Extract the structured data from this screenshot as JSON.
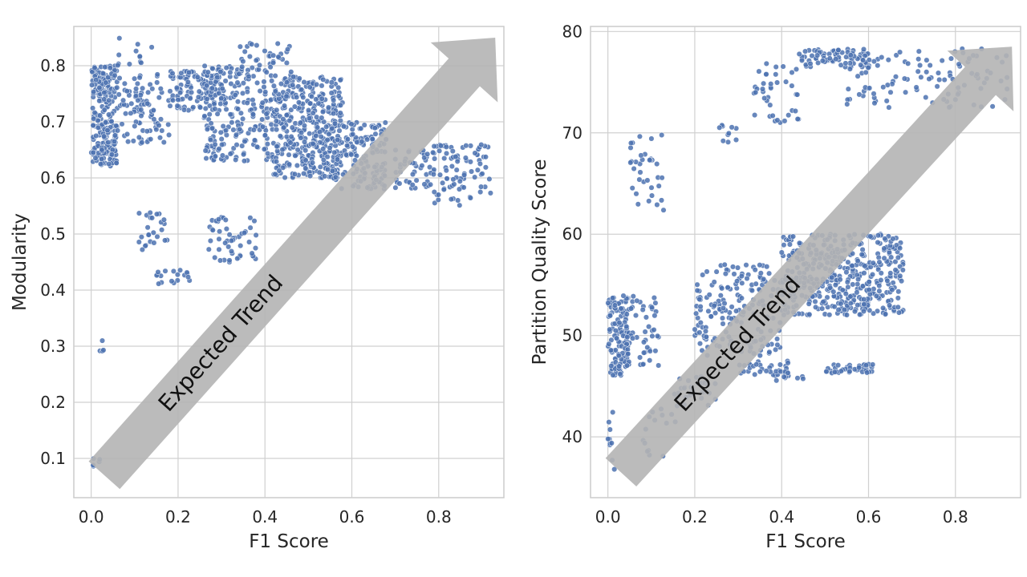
{
  "chart_data": [
    {
      "type": "scatter",
      "xlabel": "F1 Score",
      "ylabel": "Modularity",
      "xlim": [
        -0.04,
        0.95
      ],
      "ylim": [
        0.03,
        0.87
      ],
      "x_ticks": [
        "0.0",
        "0.2",
        "0.4",
        "0.6",
        "0.8"
      ],
      "y_ticks": [
        "0.1",
        "0.2",
        "0.3",
        "0.4",
        "0.5",
        "0.6",
        "0.7",
        "0.8"
      ],
      "x_tick_values": [
        0.0,
        0.2,
        0.4,
        0.6,
        0.8
      ],
      "y_tick_values": [
        0.1,
        0.2,
        0.3,
        0.4,
        0.5,
        0.6,
        0.7,
        0.8
      ],
      "grid": true,
      "point_color": "#4c72b0",
      "annotation": {
        "text": "Expected Trend",
        "from": [
          0.03,
          0.07
        ],
        "to": [
          0.93,
          0.85
        ]
      },
      "clusters": [
        {
          "x": [
            0.0,
            0.06
          ],
          "y": [
            0.62,
            0.8
          ],
          "n": 230
        },
        {
          "x": [
            0.06,
            0.18
          ],
          "y": [
            0.66,
            0.79
          ],
          "n": 90
        },
        {
          "x": [
            0.18,
            0.3
          ],
          "y": [
            0.72,
            0.79
          ],
          "n": 110
        },
        {
          "x": [
            0.26,
            0.42
          ],
          "y": [
            0.63,
            0.8
          ],
          "n": 220
        },
        {
          "x": [
            0.42,
            0.58
          ],
          "y": [
            0.6,
            0.78
          ],
          "n": 380
        },
        {
          "x": [
            0.55,
            0.68
          ],
          "y": [
            0.58,
            0.7
          ],
          "n": 160
        },
        {
          "x": [
            0.34,
            0.47
          ],
          "y": [
            0.78,
            0.84
          ],
          "n": 40
        },
        {
          "x": [
            0.06,
            0.14
          ],
          "y": [
            0.8,
            0.85
          ],
          "n": 12
        },
        {
          "x": [
            0.7,
            0.78
          ],
          "y": [
            0.58,
            0.65
          ],
          "n": 45
        },
        {
          "x": [
            0.78,
            0.92
          ],
          "y": [
            0.55,
            0.66
          ],
          "n": 90
        },
        {
          "x": [
            0.11,
            0.18
          ],
          "y": [
            0.47,
            0.54
          ],
          "n": 25
        },
        {
          "x": [
            0.15,
            0.23
          ],
          "y": [
            0.41,
            0.44
          ],
          "n": 18
        },
        {
          "x": [
            0.27,
            0.38
          ],
          "y": [
            0.45,
            0.53
          ],
          "n": 50
        },
        {
          "x": [
            0.02,
            0.03
          ],
          "y": [
            0.29,
            0.31
          ],
          "n": 4
        },
        {
          "x": [
            0.0,
            0.02
          ],
          "y": [
            0.07,
            0.1
          ],
          "n": 5
        }
      ]
    },
    {
      "type": "scatter",
      "xlabel": "F1 Score",
      "ylabel": "Partition Quality Score",
      "xlim": [
        -0.04,
        0.95
      ],
      "ylim": [
        34.0,
        80.5
      ],
      "x_ticks": [
        "0.0",
        "0.2",
        "0.4",
        "0.6",
        "0.8"
      ],
      "y_ticks": [
        "40",
        "50",
        "60",
        "70",
        "80"
      ],
      "x_tick_values": [
        0.0,
        0.2,
        0.4,
        0.6,
        0.8
      ],
      "y_tick_values": [
        40,
        50,
        60,
        70,
        80
      ],
      "grid": true,
      "point_color": "#4c72b0",
      "annotation": {
        "text": "Expected Trend",
        "from": [
          0.03,
          36.5
        ],
        "to": [
          0.93,
          78.5
        ]
      },
      "clusters": [
        {
          "x": [
            0.0,
            0.05
          ],
          "y": [
            46,
            54
          ],
          "n": 130
        },
        {
          "x": [
            0.04,
            0.12
          ],
          "y": [
            47,
            54
          ],
          "n": 50
        },
        {
          "x": [
            0.0,
            0.02
          ],
          "y": [
            36,
            45
          ],
          "n": 10
        },
        {
          "x": [
            0.05,
            0.13
          ],
          "y": [
            62,
            70
          ],
          "n": 35
        },
        {
          "x": [
            0.2,
            0.4
          ],
          "y": [
            48,
            57
          ],
          "n": 180
        },
        {
          "x": [
            0.4,
            0.68
          ],
          "y": [
            52,
            60
          ],
          "n": 450
        },
        {
          "x": [
            0.3,
            0.42
          ],
          "y": [
            46,
            47.5
          ],
          "n": 30
        },
        {
          "x": [
            0.38,
            0.45
          ],
          "y": [
            45.5,
            46.5
          ],
          "n": 12
        },
        {
          "x": [
            0.5,
            0.62
          ],
          "y": [
            46.3,
            47.2
          ],
          "n": 40
        },
        {
          "x": [
            0.15,
            0.25
          ],
          "y": [
            43,
            46
          ],
          "n": 30
        },
        {
          "x": [
            0.07,
            0.17
          ],
          "y": [
            38,
            43
          ],
          "n": 15
        },
        {
          "x": [
            0.25,
            0.3
          ],
          "y": [
            69,
            71
          ],
          "n": 10
        },
        {
          "x": [
            0.33,
            0.44
          ],
          "y": [
            71,
            77
          ],
          "n": 40
        },
        {
          "x": [
            0.44,
            0.6
          ],
          "y": [
            76.5,
            78.3
          ],
          "n": 70
        },
        {
          "x": [
            0.55,
            0.92
          ],
          "y": [
            72.5,
            78.3
          ],
          "n": 110
        }
      ]
    }
  ]
}
